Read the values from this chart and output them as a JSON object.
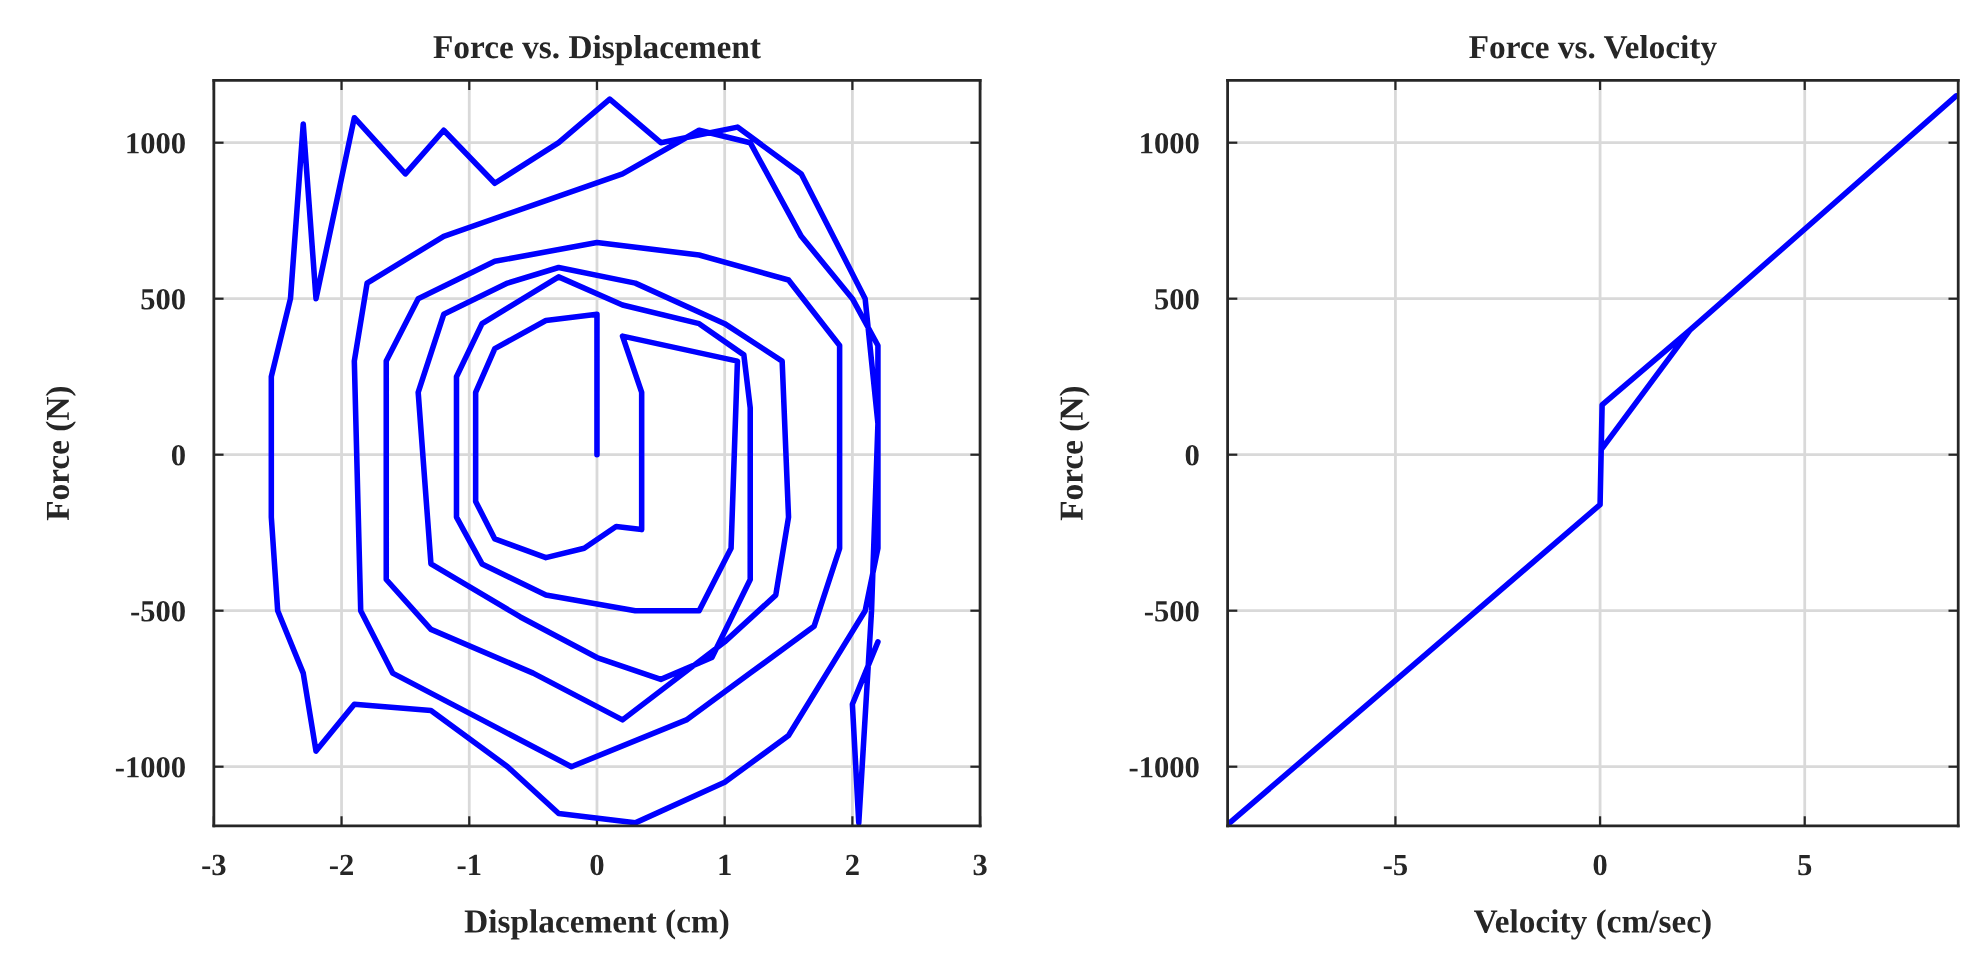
{
  "chart_data": [
    {
      "type": "line",
      "title": "Force vs. Displacement",
      "xlabel": "Displacement (cm)",
      "ylabel": "Force (N)",
      "xlim": [
        -3,
        3
      ],
      "ylim": [
        -1190,
        1200
      ],
      "xticks": [
        -3,
        -2,
        -1,
        0,
        1,
        2,
        3
      ],
      "yticks": [
        -1000,
        -500,
        0,
        500,
        1000
      ],
      "grid": true,
      "series": [
        {
          "color": "#0000ff",
          "x": [
            0,
            0,
            -0.4,
            -0.8,
            -0.95,
            -0.95,
            -0.8,
            -0.4,
            -0.1,
            0.15,
            0.35,
            0.35,
            0.2,
            1.1,
            1.05,
            0.8,
            0.3,
            -0.4,
            -0.9,
            -1.1,
            -1.1,
            -0.9,
            -0.3,
            0.2,
            0.8,
            1.15,
            1.2,
            1.2,
            0.9,
            0.5,
            0,
            -0.6,
            -1.3,
            -1.4,
            -1.2,
            -0.7,
            -0.3,
            0.3,
            1.0,
            1.45,
            1.5,
            1.4,
            1.0,
            0.2,
            -0.5,
            -1.3,
            -1.65,
            -1.65,
            -1.4,
            -0.8,
            0,
            0.8,
            1.5,
            1.9,
            1.9,
            1.7,
            1.2,
            0.7,
            -0.2,
            -0.9,
            -1.6,
            -1.85,
            -1.9,
            -1.8,
            -1.2,
            -0.5,
            0.2,
            0.8,
            1.2,
            1.6,
            2.0,
            2.2,
            2.2,
            2.1,
            1.8,
            1.5,
            1.0,
            0.3,
            -0.3,
            -0.7,
            -1.3,
            -1.9,
            -2.2,
            -2.3,
            -2.5,
            -2.55,
            -2.55,
            -2.4,
            -2.3,
            -2.2,
            -1.9,
            -1.5,
            -1.2,
            -0.8,
            -0.3,
            0.1,
            0.5,
            1.1,
            1.6,
            2.1,
            2.2,
            2.15,
            2.05,
            2.0,
            2.2
          ],
          "values": [
            0,
            450,
            430,
            340,
            200,
            -150,
            -270,
            -330,
            -300,
            -230,
            -240,
            200,
            380,
            300,
            -300,
            -500,
            -500,
            -450,
            -350,
            -200,
            250,
            420,
            570,
            480,
            420,
            320,
            150,
            -400,
            -650,
            -720,
            -650,
            -520,
            -350,
            200,
            450,
            550,
            600,
            550,
            420,
            300,
            -200,
            -450,
            -600,
            -850,
            -700,
            -560,
            -400,
            300,
            500,
            620,
            680,
            640,
            560,
            350,
            -300,
            -550,
            -700,
            -850,
            -1000,
            -850,
            -700,
            -500,
            300,
            550,
            700,
            800,
            900,
            1040,
            1000,
            700,
            500,
            350,
            -300,
            -500,
            -700,
            -900,
            -1050,
            -1180,
            -1150,
            -1000,
            -820,
            -800,
            -950,
            -700,
            -500,
            -200,
            250,
            500,
            1060,
            500,
            1080,
            900,
            1040,
            870,
            1000,
            1140,
            1000,
            1050,
            900,
            500,
            100,
            -500,
            -1180,
            -800,
            -600
          ]
        }
      ]
    },
    {
      "type": "line",
      "title": "Force vs. Velocity",
      "xlabel": "Velocity (cm/sec)",
      "ylabel": "Force (N)",
      "xlim": [
        -9.1,
        8.75
      ],
      "ylim": [
        -1190,
        1200
      ],
      "xticks": [
        -5,
        0,
        5
      ],
      "yticks": [
        -1000,
        -500,
        0,
        500,
        1000
      ],
      "grid": true,
      "series": [
        {
          "color": "#0000ff",
          "x": [
            -9.05,
            0,
            0.05,
            2.2,
            0.05,
            2.2,
            8.7
          ],
          "values": [
            -1180,
            -160,
            160,
            400,
            20,
            400,
            1150
          ]
        }
      ]
    }
  ]
}
